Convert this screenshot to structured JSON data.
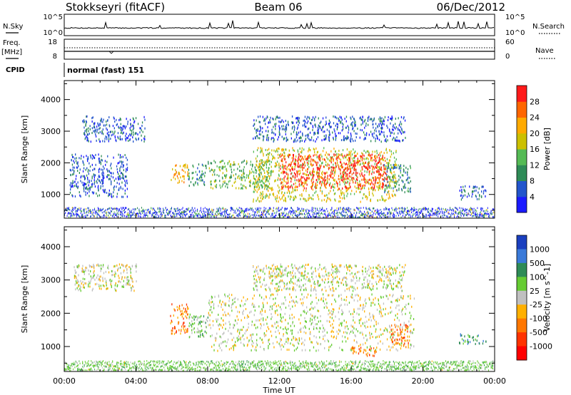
{
  "header": {
    "station": "Stokkseyri (fitACF)",
    "beam": "Beam 06",
    "date": "06/Dec/2012"
  },
  "side_labels": {
    "nsky": "N.Sky",
    "nsearch": "N.Search",
    "freq": "Freq.",
    "mhz": "[MHz]",
    "nave": "Nave",
    "cpid": "CPID"
  },
  "noise_panel": {
    "left_ticks": [
      "10^5",
      "10^0"
    ],
    "right_ticks": [
      "10^5",
      "10^0"
    ]
  },
  "freq_panel": {
    "left_ticks": [
      "18",
      "8"
    ],
    "right_ticks": [
      "60",
      "0"
    ]
  },
  "cpid_text": "normal (fast) 151",
  "chart_data": [
    {
      "type": "heatmap",
      "panel": "power",
      "xlabel": "",
      "ylabel": "Slant Range [km]",
      "x_ticks": [
        "00:00",
        "04:00",
        "08:00",
        "12:00",
        "16:00",
        "20:00",
        "00:00"
      ],
      "y_ticks": [
        1000,
        2000,
        3000,
        4000
      ],
      "ylim": [
        250,
        4600
      ],
      "colorbar": {
        "label": "Power [dB]",
        "ticks": [
          "4",
          "8",
          "12",
          "16",
          "20",
          "24",
          "28"
        ],
        "colors": [
          "#1a1aff",
          "#2255cc",
          "#2e8b57",
          "#55bb55",
          "#ccc000",
          "#ffaa00",
          "#ff6600",
          "#ff1a1a"
        ]
      },
      "regions": [
        {
          "t": [
            1.0,
            4.5
          ],
          "r": [
            2700,
            3500
          ],
          "level": 1
        },
        {
          "t": [
            0.3,
            3.5
          ],
          "r": [
            950,
            2300
          ],
          "level": 1
        },
        {
          "t": [
            5.9,
            6.9
          ],
          "r": [
            1400,
            2000
          ],
          "level": 5
        },
        {
          "t": [
            6.9,
            7.9
          ],
          "r": [
            1300,
            2000
          ],
          "level": 2
        },
        {
          "t": [
            8.0,
            11.5
          ],
          "r": [
            1200,
            2100
          ],
          "level": 3
        },
        {
          "t": [
            10.5,
            18.5
          ],
          "r": [
            800,
            2500
          ],
          "level": 4
        },
        {
          "t": [
            12.0,
            18.0
          ],
          "r": [
            1200,
            2300
          ],
          "level": 7
        },
        {
          "t": [
            10.5,
            19.0
          ],
          "r": [
            2700,
            3500
          ],
          "level": 1
        },
        {
          "t": [
            17.8,
            19.3
          ],
          "r": [
            1100,
            2000
          ],
          "level": 2
        },
        {
          "t": [
            22.0,
            23.5
          ],
          "r": [
            850,
            1300
          ],
          "level": 1
        }
      ]
    },
    {
      "type": "heatmap",
      "panel": "velocity",
      "xlabel": "Time UT",
      "ylabel": "Slant Range [km]",
      "x_ticks": [
        "00:00",
        "04:00",
        "08:00",
        "12:00",
        "16:00",
        "20:00",
        "00:00"
      ],
      "y_ticks": [
        1000,
        2000,
        3000,
        4000
      ],
      "ylim": [
        250,
        4600
      ],
      "colorbar": {
        "label": "Velocity [m s^-1]",
        "ticks": [
          "1000",
          "500",
          "100",
          "25",
          "-25",
          "-100",
          "-500",
          "-1000"
        ],
        "colors": [
          "#1a3fbf",
          "#3a7ad9",
          "#2e8b57",
          "#66cc33",
          "#c0c0c0",
          "#ffb000",
          "#ff7700",
          "#ff3300",
          "#ff0000"
        ]
      },
      "regions": [
        {
          "t": [
            0.5,
            4.0
          ],
          "r": [
            2700,
            3500
          ],
          "level": 4
        },
        {
          "t": [
            5.9,
            6.9
          ],
          "r": [
            1400,
            2300
          ],
          "level": 6
        },
        {
          "t": [
            6.9,
            8.0
          ],
          "r": [
            1300,
            2000
          ],
          "level": 3
        },
        {
          "t": [
            8.0,
            19.5
          ],
          "r": [
            900,
            2600
          ],
          "level": 4
        },
        {
          "t": [
            10.5,
            19.0
          ],
          "r": [
            2700,
            3500
          ],
          "level": 4
        },
        {
          "t": [
            18.2,
            19.2
          ],
          "r": [
            1000,
            1700
          ],
          "level": 6
        },
        {
          "t": [
            16.0,
            17.5
          ],
          "r": [
            750,
            1000
          ],
          "level": 6
        },
        {
          "t": [
            22.0,
            23.5
          ],
          "r": [
            1100,
            1400
          ],
          "level": 2
        }
      ]
    }
  ]
}
